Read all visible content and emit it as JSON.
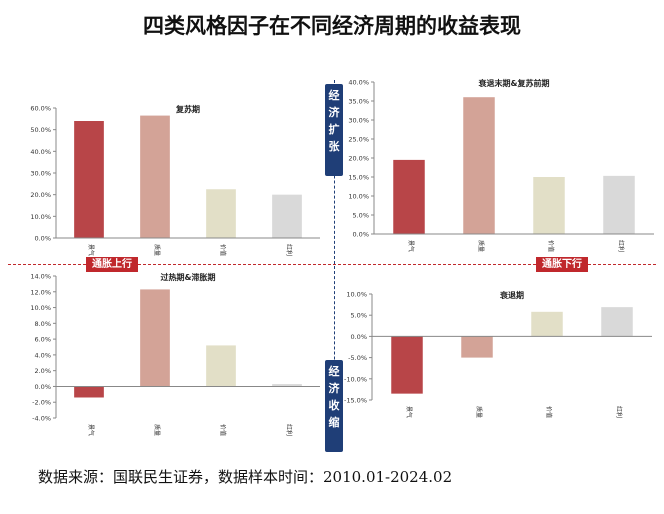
{
  "title": "四类风格因子在不同经济周期的收益表现",
  "source": "数据来源：国联民生证券，数据样本时间：2010.01-2024.02",
  "axis_labels": {
    "top": "经济扩张",
    "bottom": "经济收缩",
    "left": "通胀上行",
    "right": "通胀下行"
  },
  "colors": {
    "景气": "#b84548",
    "质量": "#d3a397",
    "价值": "#e2dfc7",
    "红利": "#d9d9d9",
    "divider_red": "#c0282c",
    "divider_blue": "#1f3e77"
  },
  "chart_data": [
    {
      "type": "bar",
      "title": "复苏期",
      "categories": [
        "景气",
        "质量",
        "价值",
        "红利"
      ],
      "values": [
        54.0,
        56.5,
        22.5,
        20.0
      ],
      "ylim": [
        0,
        60
      ],
      "yticks": [
        0,
        10,
        20,
        30,
        40,
        50,
        60
      ],
      "tick_labels": [
        "0.0%",
        "10.0%",
        "20.0%",
        "30.0%",
        "40.0%",
        "50.0%",
        "60.0%"
      ],
      "xlabel": "",
      "ylabel": ""
    },
    {
      "type": "bar",
      "title": "衰退末期&复苏前期",
      "categories": [
        "景气",
        "质量",
        "价值",
        "红利"
      ],
      "values": [
        19.5,
        36.0,
        15.0,
        15.3
      ],
      "ylim": [
        0,
        40
      ],
      "yticks": [
        0,
        5,
        10,
        15,
        20,
        25,
        30,
        35,
        40
      ],
      "tick_labels": [
        "0.0%",
        "5.0%",
        "10.0%",
        "15.0%",
        "20.0%",
        "25.0%",
        "30.0%",
        "35.0%",
        "40.0%"
      ],
      "xlabel": "",
      "ylabel": ""
    },
    {
      "type": "bar",
      "title": "过热期&滞胀期",
      "categories": [
        "景气",
        "质量",
        "价值",
        "红利"
      ],
      "values": [
        -1.4,
        12.3,
        5.2,
        0.3
      ],
      "ylim": [
        -4,
        14
      ],
      "yticks": [
        -4,
        -2,
        0,
        2,
        4,
        6,
        8,
        10,
        12,
        14
      ],
      "tick_labels": [
        "-4.0%",
        "-2.0%",
        "0.0%",
        "2.0%",
        "4.0%",
        "6.0%",
        "8.0%",
        "10.0%",
        "12.0%",
        "14.0%"
      ],
      "xlabel": "",
      "ylabel": ""
    },
    {
      "type": "bar",
      "title": "衰退期",
      "categories": [
        "景气",
        "质量",
        "价值",
        "红利"
      ],
      "values": [
        -13.5,
        -5.0,
        5.8,
        6.9
      ],
      "ylim": [
        -15,
        10
      ],
      "yticks": [
        -15,
        -10,
        -5,
        0,
        5,
        10
      ],
      "tick_labels": [
        "-15.0%",
        "-10.0%",
        "-5.0%",
        "0.0%",
        "5.0%",
        "10.0%"
      ],
      "xlabel": "",
      "ylabel": ""
    }
  ]
}
